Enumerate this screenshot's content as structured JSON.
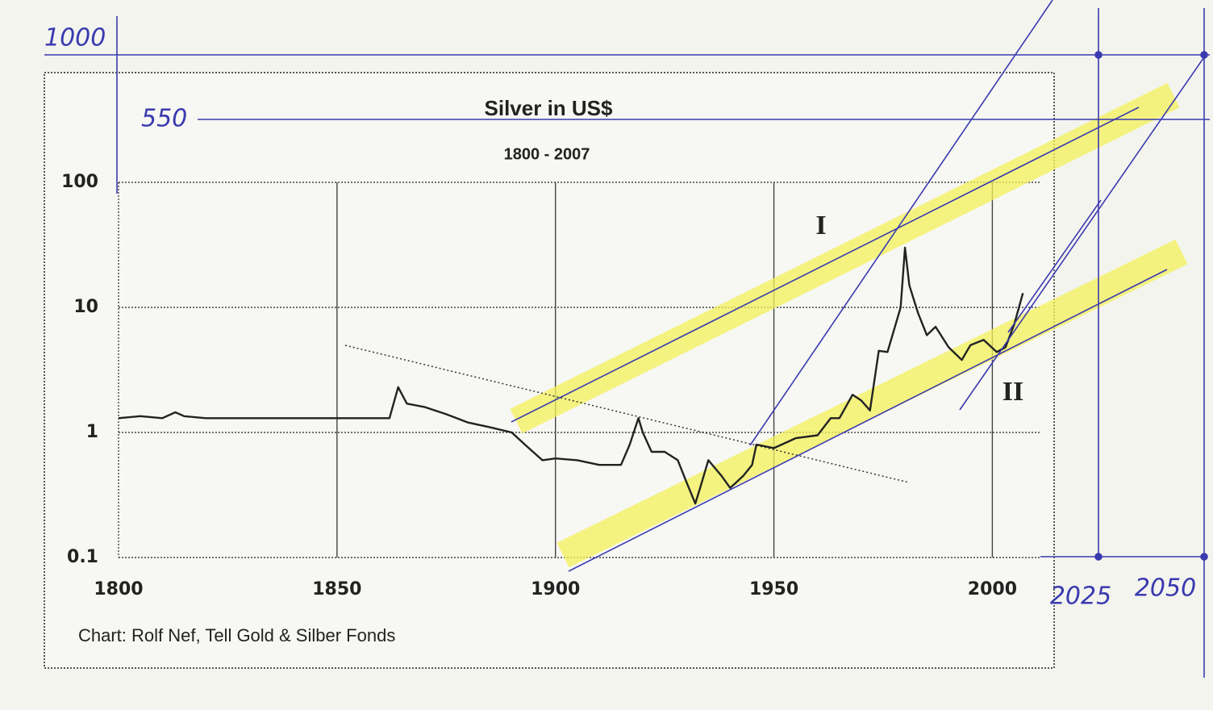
{
  "chart_data": {
    "type": "line",
    "title": "Silver in US$",
    "subtitle": "1800 - 2007",
    "source": "Chart: Rolf Nef, Tell Gold & Silber Fonds",
    "log_scale": true,
    "grid": true,
    "xlim": [
      1800,
      2011
    ],
    "xticks": [
      1800,
      1850,
      1900,
      1950,
      2000
    ],
    "ylim": [
      0.1,
      100
    ],
    "yticks": [
      0.1,
      1,
      10,
      100
    ],
    "channel_labels": [
      "I",
      "II"
    ],
    "hand_notes": [
      1000,
      550,
      2025,
      2050
    ],
    "series": [
      {
        "name": "Silver",
        "color": "#222222",
        "x": [
          1800,
          1805,
          1810,
          1813,
          1815,
          1820,
          1830,
          1840,
          1850,
          1862,
          1864,
          1866,
          1870,
          1875,
          1880,
          1885,
          1890,
          1893,
          1897,
          1900,
          1905,
          1910,
          1915,
          1917,
          1919,
          1920,
          1922,
          1925,
          1928,
          1930,
          1932,
          1933,
          1935,
          1938,
          1940,
          1943,
          1945,
          1946,
          1950,
          1955,
          1960,
          1963,
          1965,
          1968,
          1970,
          1972,
          1974,
          1976,
          1979,
          1980,
          1981,
          1983,
          1985,
          1987,
          1990,
          1993,
          1995,
          1998,
          2001,
          2003,
          2005,
          2007
        ],
        "values": [
          1.3,
          1.35,
          1.3,
          1.45,
          1.35,
          1.3,
          1.3,
          1.3,
          1.3,
          1.3,
          2.3,
          1.7,
          1.6,
          1.4,
          1.2,
          1.1,
          1.0,
          0.8,
          0.6,
          0.62,
          0.6,
          0.55,
          0.55,
          0.8,
          1.3,
          1.0,
          0.7,
          0.7,
          0.6,
          0.4,
          0.27,
          0.35,
          0.6,
          0.45,
          0.36,
          0.45,
          0.55,
          0.8,
          0.75,
          0.9,
          0.95,
          1.3,
          1.3,
          2.0,
          1.8,
          1.5,
          4.5,
          4.4,
          10,
          30,
          15,
          9,
          6,
          7,
          4.8,
          3.8,
          5,
          5.5,
          4.4,
          4.8,
          7.3,
          13
        ]
      }
    ]
  }
}
